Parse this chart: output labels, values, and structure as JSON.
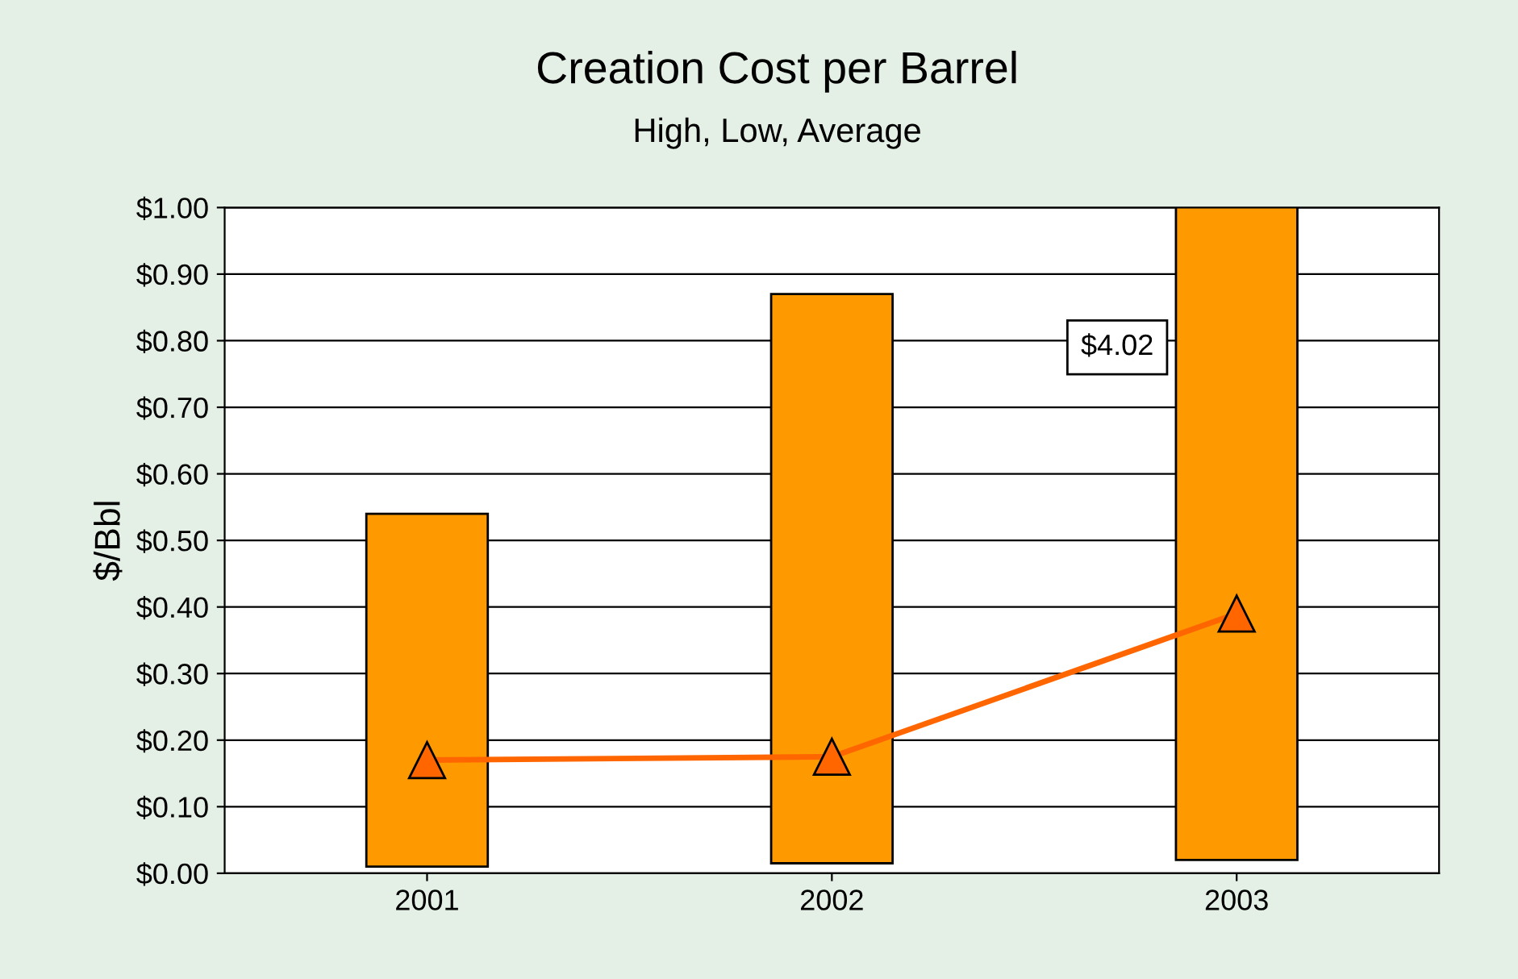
{
  "chart_data": {
    "type": "bar",
    "title": "Creation Cost per Barrel",
    "subtitle": "High, Low, Average",
    "ylabel": "$/Bbl",
    "categories": [
      "2001",
      "2002",
      "2003"
    ],
    "series": [
      {
        "color": "#ff9900",
        "base": [
          0.01,
          0.015,
          0.02
        ],
        "values": [
          0.53,
          0.855,
          4.0
        ]
      },
      {
        "type": "line",
        "color": "#ff6600",
        "marker": "triangle",
        "values": [
          0.17,
          0.175,
          0.39
        ]
      }
    ],
    "annotations": [
      "$4.02"
    ],
    "ylim": [
      0,
      1.0
    ],
    "yticks": [
      {
        "value": 0,
        "label": "$0.00"
      },
      {
        "value": 0.1,
        "label": "$0.10"
      },
      {
        "value": 0.2,
        "label": "$0.20"
      },
      {
        "value": 0.3,
        "label": "$0.30"
      },
      {
        "value": 0.4,
        "label": "$0.40"
      },
      {
        "value": 0.5,
        "label": "$0.50"
      },
      {
        "value": 0.6,
        "label": "$0.60"
      },
      {
        "value": 0.7,
        "label": "$0.70"
      },
      {
        "value": 0.8,
        "label": "$0.80"
      },
      {
        "value": 0.9,
        "label": "$0.90"
      },
      {
        "value": 1.0,
        "label": "$1.00"
      }
    ],
    "grid": "y"
  }
}
